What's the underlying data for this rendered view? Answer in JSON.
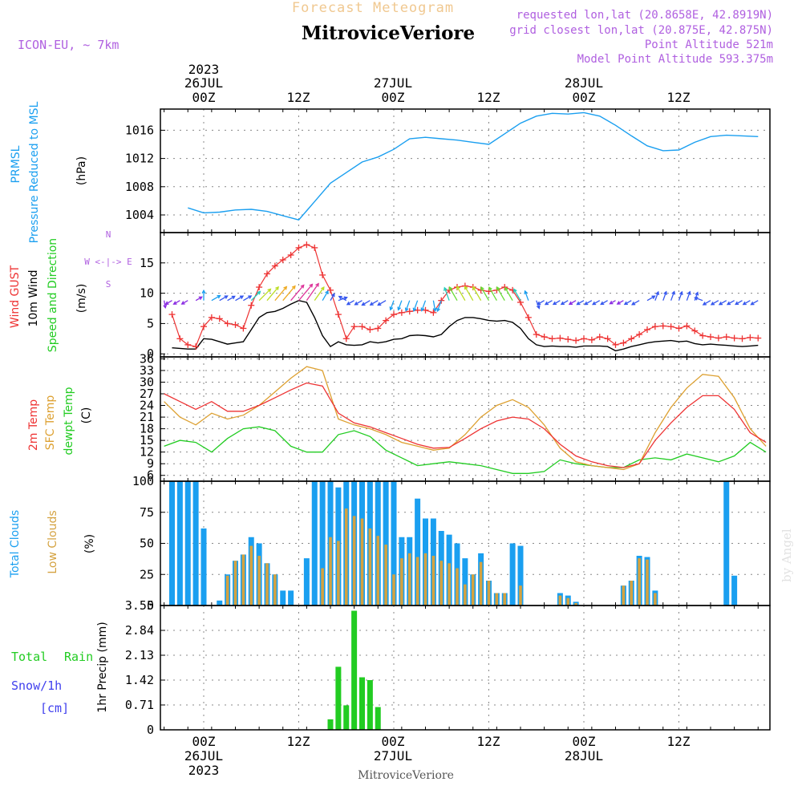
{
  "header": {
    "forecast_title": "Forecast Meteogram",
    "station": "MitroviceVeriore",
    "model": "ICON-EU, ~ 7km",
    "requested": "requested lon,lat (20.8658E, 42.8919N)",
    "closest": "grid closest lon,lat (20.875E, 42.875N)",
    "point_altitude": "Point Altitude 521m",
    "model_altitude": "Model Point Altitude 593.375m"
  },
  "time_axis": {
    "top_ticks": [
      "00Z",
      "12Z",
      "00Z",
      "12Z",
      "00Z",
      "12Z"
    ],
    "top_dates": [
      "26JUL",
      "27JUL",
      "28JUL"
    ],
    "top_year": "2023",
    "bottom_ticks": [
      "00Z",
      "12Z",
      "00Z",
      "12Z",
      "00Z",
      "12Z"
    ],
    "bottom_dates": [
      "26JUL",
      "27JUL",
      "28JUL"
    ],
    "bottom_year": "2023",
    "footer_station": "MitroviceVeriore"
  },
  "watermark": "by Angel",
  "colors": {
    "pressure": "#1a9ff0",
    "gust": "#ee3333",
    "wind": "#000000",
    "temp": "#ee3333",
    "sfc_temp": "#dda030",
    "dewpt": "#22cc22",
    "total_clouds": "#1a9ff0",
    "low_clouds": "#d4a240",
    "rain": "#22cc22",
    "snow": "#4040ee",
    "header_purple": "#b060e0",
    "forecast_gold": "#f0c890"
  },
  "chart_data": [
    {
      "type": "line",
      "panel": "pressure",
      "label_lines": [
        "PRMSL",
        "Pressure Reduced to MSL",
        "(hPa)"
      ],
      "ylim": [
        1001.5,
        1019
      ],
      "yticks": [
        "1004",
        "1008",
        "1012",
        "1016"
      ],
      "x_hours": [
        -2,
        0,
        2,
        4,
        6,
        8,
        10,
        12,
        14,
        16,
        18,
        20,
        22,
        24,
        26,
        28,
        30,
        32,
        34,
        36,
        38,
        40,
        42,
        44,
        46,
        48,
        50,
        52,
        54,
        56,
        58,
        60,
        62,
        64,
        66,
        68,
        70
      ],
      "series": [
        {
          "values": [
            1005.0,
            1004.3,
            1004.4,
            1004.7,
            1004.8,
            1004.5,
            1003.9,
            1003.3,
            1005.9,
            1008.5,
            1010.0,
            1011.5,
            1012.2,
            1013.3,
            1014.8,
            1015.0,
            1014.8,
            1014.6,
            1014.3,
            1014.0,
            1015.5,
            1017.0,
            1018.0,
            1018.4,
            1018.3,
            1018.5,
            1018.0,
            1016.7,
            1015.2,
            1013.8,
            1013.1,
            1013.2,
            1014.3,
            1015.1,
            1015.3,
            1015.2,
            1015.1
          ]
        }
      ]
    },
    {
      "type": "line",
      "panel": "wind",
      "label_lines": [
        "Wind GUST",
        "10m Wind",
        "Speed and Direction",
        "(m/s)"
      ],
      "compass": [
        "N",
        "W <-|-> E",
        "S"
      ],
      "ylim": [
        -0.5,
        20
      ],
      "yticks": [
        "0",
        "5",
        "10",
        "15"
      ],
      "x_hours": [
        -4,
        -3,
        -2,
        -1,
        0,
        1,
        2,
        3,
        4,
        5,
        6,
        7,
        8,
        9,
        10,
        11,
        12,
        13,
        14,
        15,
        16,
        17,
        18,
        19,
        20,
        21,
        22,
        23,
        24,
        25,
        26,
        27,
        28,
        29,
        30,
        31,
        32,
        33,
        34,
        35,
        36,
        37,
        38,
        39,
        40,
        41,
        42,
        43,
        44,
        45,
        46,
        47,
        48,
        49,
        50,
        51,
        52,
        53,
        54,
        55,
        56,
        57,
        58,
        59,
        60,
        61,
        62,
        63,
        64,
        65,
        66,
        67,
        68,
        69,
        70
      ],
      "series": [
        {
          "name": "Wind GUST",
          "values": [
            6.5,
            2.5,
            1.5,
            1.2,
            4.5,
            6,
            5.8,
            5,
            4.8,
            4.2,
            8,
            11,
            13.2,
            14.5,
            15.5,
            16.3,
            17.5,
            18,
            17.5,
            13,
            10.5,
            6.5,
            2.5,
            4.5,
            4.5,
            4,
            4.2,
            5.5,
            6.5,
            6.8,
            7,
            7.2,
            7.2,
            6.8,
            8.8,
            10.5,
            11,
            11.2,
            11,
            10.5,
            10.3,
            10.5,
            11,
            10.5,
            8.5,
            6,
            3.2,
            2.8,
            2.5,
            2.6,
            2.4,
            2.2,
            2.5,
            2.3,
            2.8,
            2.5,
            1.5,
            1.8,
            2.5,
            3.2,
            4,
            4.5,
            4.6,
            4.5,
            4.2,
            4.6,
            3.8,
            3.0,
            2.8,
            2.6,
            2.8,
            2.6,
            2.5,
            2.7,
            2.6
          ]
        },
        {
          "name": "10m Wind",
          "values": [
            1,
            0.9,
            0.8,
            0.8,
            2.5,
            2.4,
            2,
            1.6,
            1.8,
            2,
            4,
            6,
            6.8,
            7,
            7.5,
            8.2,
            8.8,
            8.5,
            6,
            3,
            1.2,
            2,
            1.5,
            1.4,
            1.5,
            2,
            1.8,
            2,
            2.4,
            2.5,
            3,
            3.1,
            3,
            2.8,
            3.2,
            4.5,
            5.5,
            6,
            6,
            5.8,
            5.5,
            5.4,
            5.5,
            5.2,
            4.2,
            2.5,
            1.5,
            1.2,
            1.3,
            1.2,
            1.2,
            1.1,
            1.3,
            1.3,
            1.3,
            1.2,
            0.5,
            0.8,
            1.2,
            1.5,
            1.8,
            2,
            2.1,
            2.2,
            2.0,
            2.1,
            1.7,
            1.5,
            1.6,
            1.5,
            1.4,
            1.3,
            1.2,
            1.3,
            1.4
          ]
        }
      ],
      "wind_arrows": {
        "x_hours": [
          -5,
          -4,
          -3,
          -2,
          -1,
          0,
          1,
          2,
          3,
          4,
          5,
          6,
          7,
          8,
          9,
          10,
          11,
          12,
          13,
          14,
          15,
          16,
          17,
          18,
          19,
          20,
          21,
          22,
          23,
          24,
          25,
          26,
          27,
          28,
          29,
          30,
          31,
          32,
          33,
          34,
          35,
          36,
          37,
          38,
          39,
          40,
          41,
          42,
          43,
          44,
          45,
          46,
          47,
          48,
          49,
          50,
          51,
          52,
          53,
          54,
          55,
          56,
          57,
          58,
          59,
          60,
          61,
          62,
          63,
          64,
          65,
          66,
          67,
          68,
          69,
          70
        ],
        "direction_deg": [
          170,
          240,
          240,
          240,
          60,
          0,
          60,
          60,
          60,
          60,
          60,
          45,
          45,
          40,
          40,
          40,
          40,
          40,
          35,
          35,
          30,
          30,
          70,
          300,
          240,
          240,
          240,
          240,
          240,
          200,
          200,
          200,
          200,
          200,
          170,
          200,
          340,
          330,
          330,
          330,
          330,
          330,
          330,
          330,
          330,
          330,
          340,
          160,
          240,
          240,
          240,
          240,
          240,
          240,
          240,
          240,
          240,
          240,
          240,
          240,
          240,
          60,
          20,
          20,
          20,
          20,
          20,
          20,
          290,
          240,
          240,
          240,
          240,
          240,
          240,
          240
        ]
      }
    },
    {
      "type": "line",
      "panel": "temperature",
      "label_lines": [
        "2m Temp",
        "SFC Temp",
        "dewpt Temp",
        "(C)"
      ],
      "ylim": [
        4.5,
        36.5
      ],
      "yticks": [
        "6",
        "9",
        "12",
        "15",
        "18",
        "21",
        "24",
        "27",
        "30",
        "33",
        "36"
      ],
      "x_hours": [
        -5,
        -3,
        -1,
        1,
        3,
        5,
        7,
        9,
        11,
        13,
        15,
        17,
        19,
        21,
        23,
        25,
        27,
        29,
        31,
        33,
        35,
        37,
        39,
        41,
        43,
        45,
        47,
        49,
        51,
        53,
        55,
        57,
        59,
        61,
        63,
        65,
        67,
        69,
        71
      ],
      "series": [
        {
          "name": "2m Temp",
          "values": [
            27,
            25,
            23,
            25,
            22.5,
            22.5,
            24,
            26,
            28,
            29.8,
            29,
            22,
            19.5,
            18.5,
            17,
            15.5,
            14,
            13,
            13.2,
            15.5,
            18,
            20,
            21,
            20.5,
            18,
            14,
            11,
            9.5,
            8.5,
            8,
            9,
            15,
            19.5,
            23.5,
            26.5,
            26.5,
            23,
            17,
            14.5
          ]
        },
        {
          "name": "SFC Temp",
          "values": [
            25,
            21,
            19,
            22,
            20.5,
            21.5,
            24,
            27.5,
            31,
            34,
            33,
            20.5,
            19,
            18,
            16.5,
            14.5,
            13.5,
            12.5,
            13,
            16.5,
            21,
            24,
            25.5,
            23.5,
            19,
            13,
            9.5,
            8.5,
            8,
            7.5,
            9,
            17,
            23.5,
            28.5,
            32,
            31.5,
            26,
            18,
            13.5
          ]
        },
        {
          "name": "dewpt Temp",
          "values": [
            13.5,
            15,
            14.5,
            12,
            15.5,
            18,
            18.5,
            17.5,
            13.5,
            12,
            12,
            16.5,
            17.5,
            16,
            12.5,
            10.5,
            8.5,
            9,
            9.5,
            9,
            8.5,
            7.5,
            6.5,
            6.5,
            7,
            10,
            9,
            8.5,
            8,
            8,
            10,
            10.5,
            10,
            11.5,
            10.5,
            9.5,
            11,
            14.5,
            12
          ]
        }
      ]
    },
    {
      "type": "bar",
      "panel": "clouds",
      "label_lines": [
        "Total Clouds",
        "Low Clouds",
        "(%)"
      ],
      "ylim": [
        0,
        100
      ],
      "yticks": [
        "0",
        "25",
        "50",
        "75",
        "100"
      ],
      "x_hours": [
        -4,
        -3,
        -2,
        -1,
        0,
        1,
        2,
        3,
        4,
        5,
        6,
        7,
        8,
        9,
        10,
        11,
        12,
        13,
        14,
        15,
        16,
        17,
        18,
        19,
        20,
        21,
        22,
        23,
        24,
        25,
        26,
        27,
        28,
        29,
        30,
        31,
        32,
        33,
        34,
        35,
        36,
        37,
        38,
        39,
        40,
        41,
        42,
        43,
        44,
        45,
        46,
        47,
        48,
        49,
        50,
        51,
        52,
        53,
        54,
        55,
        56,
        57,
        58,
        59,
        60,
        61,
        62,
        63,
        64,
        65,
        66,
        67,
        68,
        69,
        70
      ],
      "series": [
        {
          "name": "Total Clouds",
          "values": [
            100,
            100,
            100,
            100,
            62,
            0,
            4,
            25,
            36,
            41,
            55,
            50,
            34,
            25,
            12,
            12,
            0,
            38,
            100,
            100,
            100,
            95,
            100,
            100,
            100,
            100,
            100,
            100,
            100,
            55,
            55,
            86,
            70,
            70,
            60,
            57,
            50,
            38,
            25,
            42,
            20,
            10,
            10,
            50,
            48,
            0,
            0,
            0,
            0,
            10,
            8,
            3,
            0,
            0,
            0,
            0,
            0,
            16,
            20,
            40,
            39,
            12,
            0,
            0,
            0,
            0,
            0,
            0,
            0,
            0,
            100,
            24,
            0,
            0,
            0
          ]
        },
        {
          "name": "Low Clouds",
          "values": [
            0,
            0,
            0,
            0,
            0,
            0,
            0,
            24,
            36,
            41,
            48,
            40,
            34,
            25,
            0,
            0,
            0,
            0,
            0,
            30,
            55,
            52,
            78,
            72,
            70,
            62,
            56,
            49,
            25,
            38,
            42,
            39,
            42,
            40,
            36,
            34,
            30,
            17,
            25,
            35,
            20,
            10,
            10,
            0,
            16,
            0,
            0,
            0,
            0,
            8,
            6,
            2,
            0,
            0,
            0,
            0,
            0,
            16,
            20,
            38,
            37,
            10,
            0,
            0,
            0,
            0,
            0,
            0,
            0,
            0,
            0,
            0,
            0,
            0,
            0
          ]
        }
      ]
    },
    {
      "type": "bar",
      "panel": "precipitation",
      "label_lines": [
        "Total",
        "Rain",
        "Snow/1h",
        "[cm]",
        "1hr Precip (mm)"
      ],
      "ylim": [
        0,
        3.55
      ],
      "yticks": [
        "0",
        "0.71",
        "1.42",
        "2.13",
        "2.84",
        "3.55"
      ],
      "x_hours": [
        16,
        17,
        18,
        19,
        20,
        21,
        22
      ],
      "series": [
        {
          "name": "Total Rain",
          "values": [
            0.3,
            1.8,
            0.7,
            3.4,
            1.5,
            1.42,
            0.65
          ]
        }
      ]
    }
  ]
}
